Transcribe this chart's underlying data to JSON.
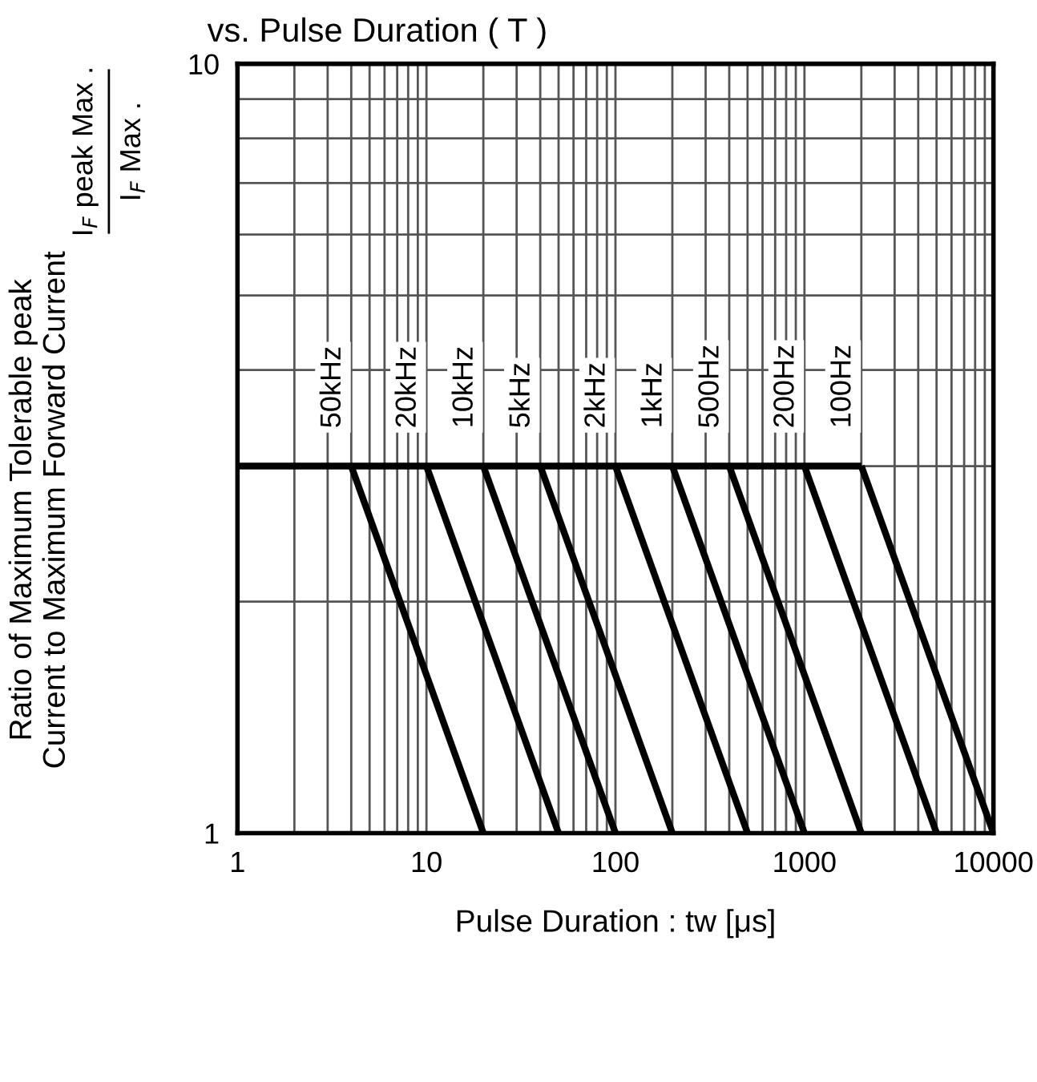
{
  "chart_data": {
    "type": "line",
    "title": "vs. Pulse Duration ( T )",
    "xlabel": "Pulse Duration : tw [μs]",
    "ylabel": "Ratio of Maximum Tolerable peak\nCurrent to Maximum Forward Current",
    "annotations": [
      "I$_{F}$ peak Max .",
      "I$_{F}$ Max ."
    ],
    "log": "xy",
    "xlim": [
      1,
      10000
    ],
    "ylim": [
      1,
      10
    ],
    "xticks": [
      1,
      10,
      100,
      1000,
      10000
    ],
    "yticks": [
      1,
      10
    ],
    "grid": true,
    "line_style": "solid",
    "marker": "none",
    "series": [
      {
        "color": "#000000",
        "x": [
          1,
          2000
        ],
        "values": [
          3,
          3
        ]
      },
      {
        "name": "50kHz",
        "color": "#000000",
        "x": [
          4,
          20
        ],
        "values": [
          3,
          1
        ]
      },
      {
        "name": "20kHz",
        "color": "#000000",
        "x": [
          10,
          50
        ],
        "values": [
          3,
          1
        ]
      },
      {
        "name": "10kHz",
        "color": "#000000",
        "x": [
          20,
          100
        ],
        "values": [
          3,
          1
        ]
      },
      {
        "name": "5kHz",
        "color": "#000000",
        "x": [
          40,
          200
        ],
        "values": [
          3,
          1
        ]
      },
      {
        "name": "2kHz",
        "color": "#000000",
        "x": [
          100,
          500
        ],
        "values": [
          3,
          1
        ]
      },
      {
        "name": "1kHz",
        "color": "#000000",
        "x": [
          200,
          1000
        ],
        "values": [
          3,
          1
        ]
      },
      {
        "name": "500Hz",
        "color": "#000000",
        "x": [
          400,
          2000
        ],
        "values": [
          3,
          1
        ]
      },
      {
        "name": "200Hz",
        "color": "#000000",
        "x": [
          1000,
          5000
        ],
        "values": [
          3,
          1
        ]
      },
      {
        "name": "100Hz",
        "color": "#000000",
        "x": [
          2000,
          10000
        ],
        "values": [
          3,
          1
        ]
      }
    ]
  }
}
